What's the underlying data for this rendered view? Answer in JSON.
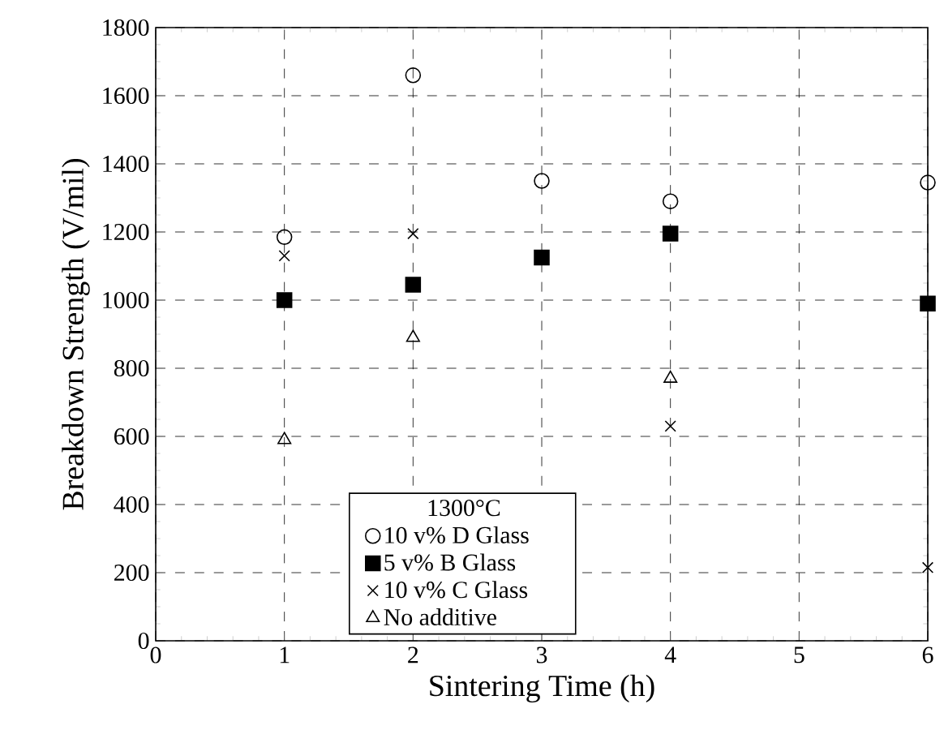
{
  "chart_data": {
    "type": "scatter",
    "xlabel": "Sintering Time (h)",
    "ylabel": "Breakdown Strength (V/mil)",
    "legend_title": "1300°C",
    "xlim": [
      0,
      6
    ],
    "xticks": [
      0,
      1,
      2,
      3,
      4,
      5,
      6
    ],
    "ylim": [
      0,
      1800
    ],
    "yticks": [
      0,
      200,
      400,
      600,
      800,
      1000,
      1200,
      1400,
      1600,
      1800
    ],
    "grid": true,
    "legend": "bottom",
    "series": [
      {
        "name": "10 v% D Glass",
        "color": "#000000",
        "marker": "circle",
        "x": [
          1,
          2,
          3,
          4,
          6
        ],
        "values": [
          1185,
          1660,
          1350,
          1290,
          1345
        ]
      },
      {
        "name": "5 v% B Glass",
        "color": "#000000",
        "marker": "square",
        "x": [
          1,
          2,
          3,
          4,
          6
        ],
        "values": [
          1000,
          1045,
          1125,
          1195,
          990
        ]
      },
      {
        "name": "10 v% C Glass",
        "color": "#000000",
        "marker": "cross",
        "x": [
          1,
          2,
          4,
          6
        ],
        "values": [
          1130,
          1195,
          630,
          215
        ]
      },
      {
        "name": "No additive",
        "color": "#000000",
        "marker": "triangle",
        "x": [
          1,
          2,
          4
        ],
        "values": [
          590,
          890,
          770
        ]
      }
    ]
  }
}
